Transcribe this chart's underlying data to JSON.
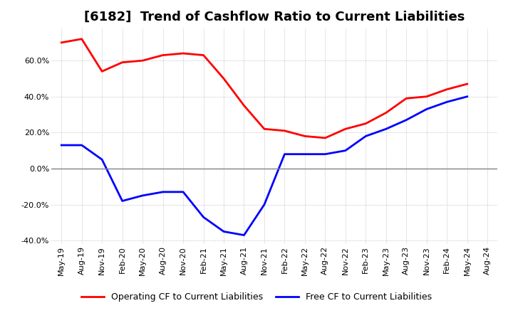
{
  "title": "[6182]  Trend of Cashflow Ratio to Current Liabilities",
  "x_labels": [
    "May-19",
    "Aug-19",
    "Nov-19",
    "Feb-20",
    "May-20",
    "Aug-20",
    "Nov-20",
    "Feb-21",
    "May-21",
    "Aug-21",
    "Nov-21",
    "Feb-22",
    "May-22",
    "Aug-22",
    "Nov-22",
    "Feb-23",
    "May-23",
    "Aug-23",
    "Nov-23",
    "Feb-24",
    "May-24",
    "Aug-24"
  ],
  "operating_cf": [
    0.7,
    0.72,
    0.54,
    0.59,
    0.6,
    0.63,
    0.64,
    0.63,
    0.5,
    0.35,
    0.22,
    0.21,
    0.18,
    0.17,
    0.22,
    0.25,
    0.31,
    0.39,
    0.4,
    0.44,
    0.47,
    null
  ],
  "free_cf": [
    0.13,
    0.13,
    0.05,
    -0.18,
    -0.15,
    -0.13,
    -0.13,
    -0.27,
    -0.35,
    -0.37,
    -0.2,
    0.08,
    0.08,
    0.08,
    0.1,
    0.18,
    0.22,
    0.27,
    0.33,
    0.37,
    0.4,
    null
  ],
  "ylim": [
    -0.42,
    0.78
  ],
  "yticks": [
    -0.4,
    -0.2,
    0.0,
    0.2,
    0.4,
    0.6
  ],
  "operating_color": "#ff0000",
  "free_color": "#0000ff",
  "grid_color": "#b0b0b0",
  "zero_line_color": "#808080",
  "background_color": "#ffffff",
  "title_fontsize": 13,
  "tick_fontsize": 8,
  "legend_fontsize": 9
}
